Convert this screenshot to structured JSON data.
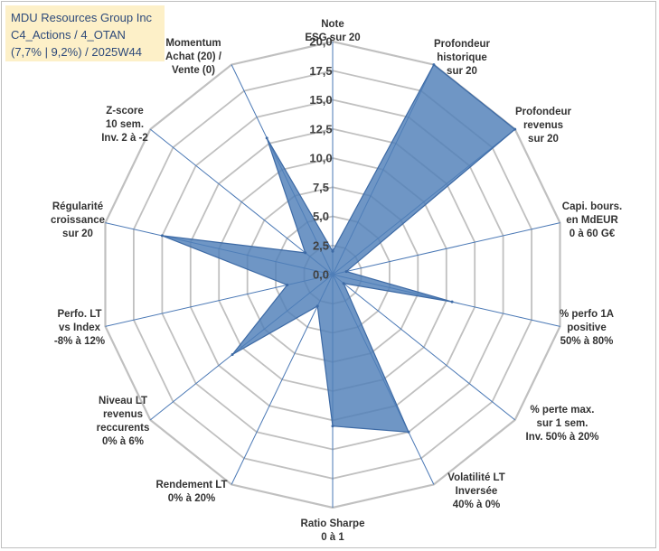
{
  "title_box": {
    "line1": "MDU Resources Group Inc",
    "line2": "C4_Actions / 4_OTAN",
    "line3": "(7,7% | 9,2%) / 2025W44",
    "background": "#fdf0c8",
    "text_color": "#2e4a7a"
  },
  "chart_data": {
    "type": "radar",
    "rmin": 0,
    "rmax": 20,
    "ticks": [
      0,
      2.5,
      5,
      7.5,
      10,
      12.5,
      15,
      17.5,
      20
    ],
    "tick_labels": [
      "0,0",
      "2,5",
      "5,0",
      "7,5",
      "10,0",
      "12,5",
      "15,0",
      "17,5",
      "20,0"
    ],
    "fill_color": "#4f7fb8",
    "grid_color": "#c0c0c0",
    "axes": [
      {
        "label": [
          "Note",
          "ESG sur 20"
        ],
        "value": 2.0
      },
      {
        "label": [
          "Profondeur",
          "historique",
          "sur 20"
        ],
        "value": 20.0
      },
      {
        "label": [
          "Profondeur",
          "revenus",
          "sur 20"
        ],
        "value": 20.0
      },
      {
        "label": [
          "Capi. bours.",
          "en MdEUR",
          "0 à 60 G€"
        ],
        "value": 1.2
      },
      {
        "label": [
          "% perfo 1A",
          "positive",
          "50% à 80%"
        ],
        "value": 10.5
      },
      {
        "label": [
          "% perte max.",
          "sur 1 sem.",
          "Inv. 50% à 20%"
        ],
        "value": 1.2
      },
      {
        "label": [
          "Volatilité LT",
          "Inversée",
          "40% à 0%"
        ],
        "value": 15.0
      },
      {
        "label": [
          "Ratio Sharpe",
          "0 à 1"
        ],
        "value": 13.0
      },
      {
        "label": [
          "Rendement LT",
          "0% à 20%"
        ],
        "value": 3.0
      },
      {
        "label": [
          "Niveau LT",
          "revenus",
          "reccurents",
          "0% à 6%"
        ],
        "value": 11.0
      },
      {
        "label": [
          "Perfo. LT",
          "vs Index",
          "-8% à 12%"
        ],
        "value": 4.0
      },
      {
        "label": [
          "Régularité",
          "croissance",
          "sur 20"
        ],
        "value": 15.0
      },
      {
        "label": [
          "Z-score",
          "10 sem.",
          "Inv. 2 à -2"
        ],
        "value": 3.0
      },
      {
        "label": [
          "Momentum",
          "Achat (20) /",
          "Vente (0)"
        ],
        "value": 13.0
      }
    ]
  }
}
